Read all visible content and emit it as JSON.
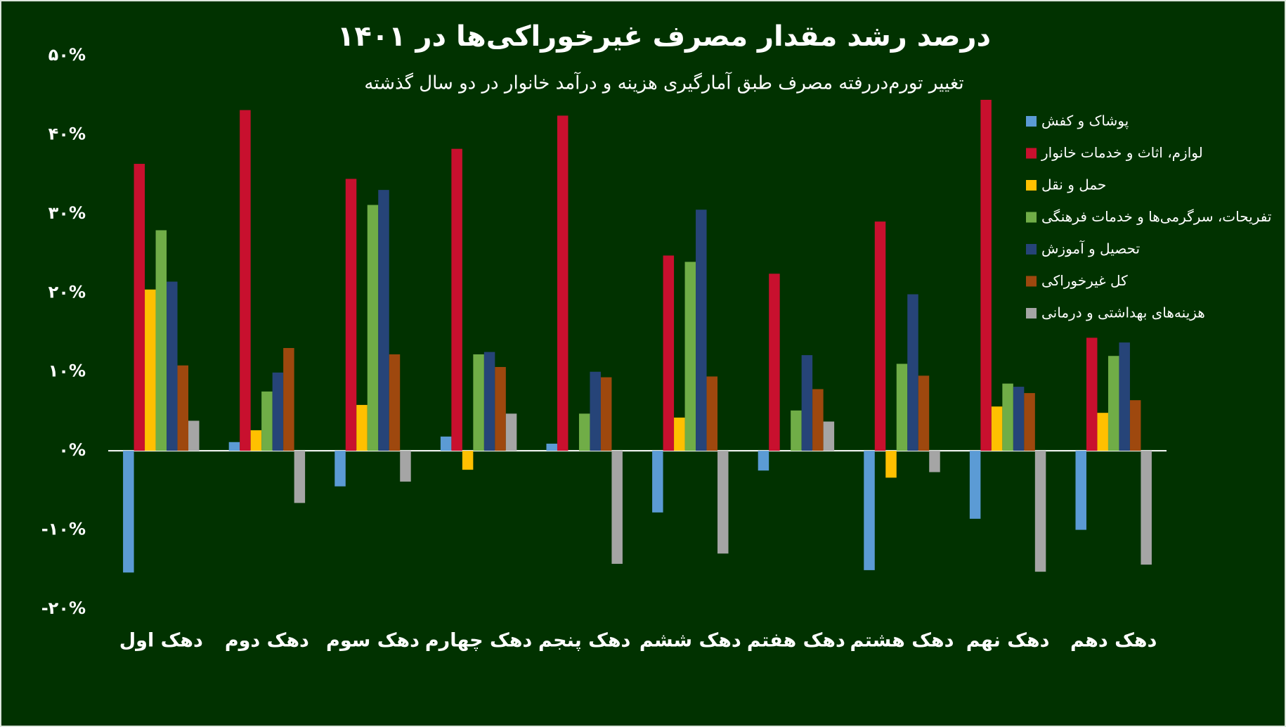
{
  "chart_data": {
    "type": "bar",
    "title": "درصد رشد مقدار مصرف غیرخوراکی‌ها در ۱۴۰۱",
    "subtitle": "تغییر تورم‌دررفته مصرف طبق آمارگیری هزینه و درآمد خانوار در دو سال گذشته",
    "categories": [
      "دهک اول",
      "دهک دوم",
      "دهک سوم",
      "دهک چهارم",
      "دهک پنجم",
      "دهک ششم",
      "دهک هفتم",
      "دهک هشتم",
      "دهک نهم",
      "دهک دهم"
    ],
    "series": [
      {
        "name": "پوشاک و کفش",
        "color": "#5b9bd5",
        "values": [
          -15.4,
          1.1,
          -4.5,
          1.8,
          0.9,
          -7.8,
          -2.5,
          -15.1,
          -8.6,
          -10.0
        ]
      },
      {
        "name": "لوازم، اثاث و خدمات خانوار",
        "color": "#c8102e",
        "values": [
          36.3,
          43.1,
          34.4,
          38.2,
          42.4,
          24.7,
          22.4,
          29.0,
          44.4,
          14.3
        ]
      },
      {
        "name": "حمل و نقل",
        "color": "#ffc000",
        "values": [
          20.4,
          2.6,
          5.8,
          -2.4,
          null,
          4.2,
          null,
          -3.4,
          5.6,
          4.8
        ]
      },
      {
        "name": "تفریحات، سرگرمی‌ها و خدمات فرهنگی",
        "color": "#70ad47",
        "values": [
          27.9,
          7.5,
          31.1,
          12.2,
          4.7,
          23.9,
          5.1,
          11.0,
          8.5,
          12.0
        ]
      },
      {
        "name": "تحصیل و آموزش",
        "color": "#264478",
        "values": [
          21.4,
          9.9,
          33.0,
          12.5,
          10.0,
          30.5,
          12.1,
          19.8,
          8.1,
          13.7
        ]
      },
      {
        "name": "کل غیرخوراکی",
        "color": "#9e480e",
        "values": [
          10.8,
          13.0,
          12.2,
          10.6,
          9.3,
          9.4,
          7.8,
          9.5,
          7.3,
          6.4
        ]
      },
      {
        "name": "هزینه‌های بهداشتی و درمانی",
        "color": "#a5a5a5",
        "values": [
          3.8,
          -6.6,
          -3.9,
          4.7,
          -14.3,
          -13.0,
          3.7,
          -2.7,
          -15.3,
          -14.4
        ]
      }
    ],
    "ylim": [
      -20,
      50
    ],
    "yticks": [
      {
        "value": -20,
        "label": "-۲۰%"
      },
      {
        "value": -10,
        "label": "-۱۰%"
      },
      {
        "value": 0,
        "label": "۰%"
      },
      {
        "value": 10,
        "label": "۱۰%"
      },
      {
        "value": 20,
        "label": "۲۰%"
      },
      {
        "value": 30,
        "label": "۳۰%"
      },
      {
        "value": 40,
        "label": "۴۰%"
      },
      {
        "value": 50,
        "label": "۵۰%"
      }
    ]
  }
}
